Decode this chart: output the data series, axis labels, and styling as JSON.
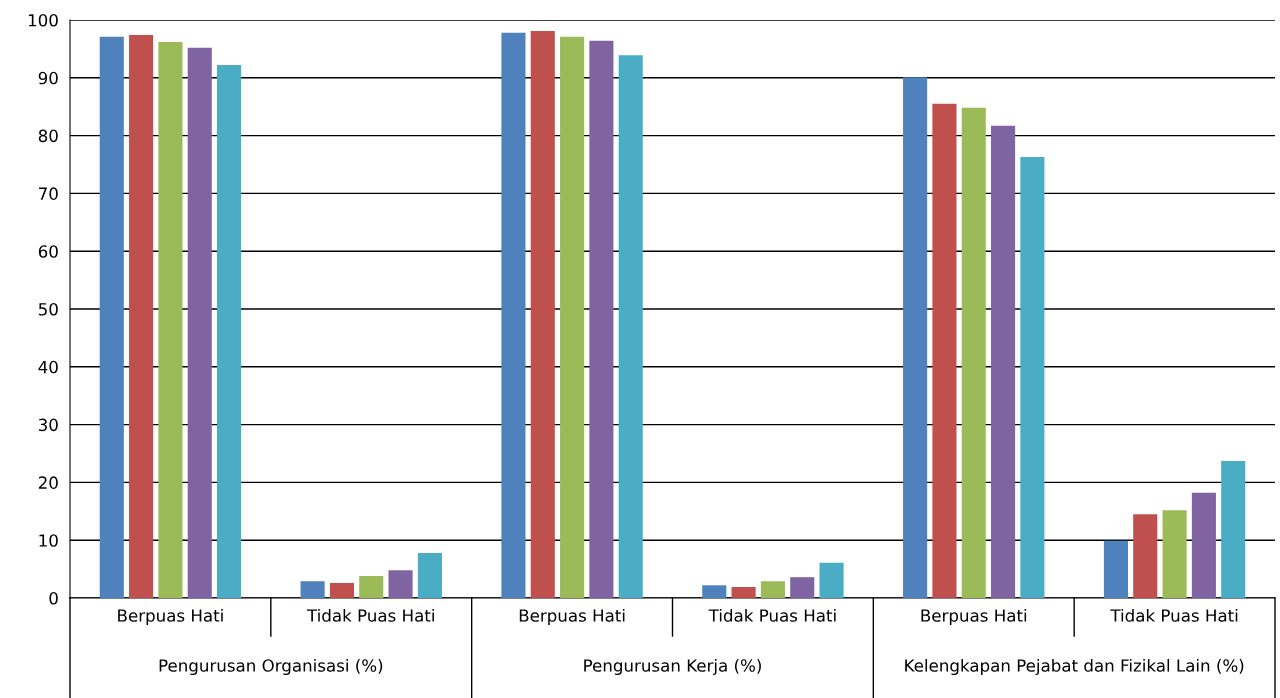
{
  "chart_data": {
    "type": "bar",
    "categories": [
      "Berpuas Hati",
      "Tidak Puas Hati",
      "Berpuas Hati",
      "Tidak Puas Hati",
      "Berpuas Hati",
      "Tidak Puas Hati"
    ],
    "series": [
      {
        "color": "#4f81bd",
        "values": [
          97.1,
          2.9,
          97.8,
          2.2,
          90.1,
          9.9
        ]
      },
      {
        "color": "#c0504d",
        "values": [
          97.4,
          2.6,
          98.1,
          1.9,
          85.5,
          14.5
        ]
      },
      {
        "color": "#9bbb59",
        "values": [
          96.2,
          3.8,
          97.1,
          2.9,
          84.8,
          15.2
        ]
      },
      {
        "color": "#8064a2",
        "values": [
          95.2,
          4.8,
          96.4,
          3.6,
          81.7,
          18.2
        ]
      },
      {
        "color": "#4bacc6",
        "values": [
          92.2,
          7.8,
          93.9,
          6.1,
          76.3,
          23.7
        ]
      }
    ],
    "annotations": [
      "Pengurusan Organisasi (%)",
      "Pengurusan Kerja (%)",
      "Kelengkapan Pejabat dan Fizikal Lain (%)"
    ],
    "ylim": [
      0,
      100
    ],
    "yticks": [
      0,
      10,
      20,
      30,
      40,
      50,
      60,
      70,
      80,
      90,
      100
    ],
    "grid": "y",
    "legend": false
  }
}
